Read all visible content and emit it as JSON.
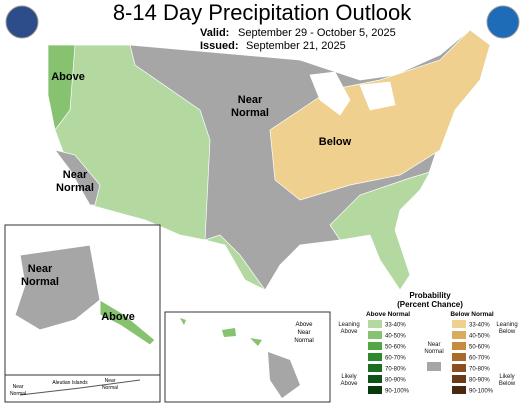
{
  "header": {
    "title": "8-14 Day Precipitation Outlook",
    "valid_label": "Valid:",
    "valid_dates": "September 29 - October 5, 2025",
    "issued_label": "Issued:",
    "issued_date": "September 21, 2025"
  },
  "map_labels": [
    [
      "Above"
    ],
    [
      "Near",
      "Normal"
    ],
    [
      "Below"
    ],
    [
      "Near",
      "Normal"
    ],
    [
      "Near",
      "Normal"
    ],
    [
      "Above"
    ],
    [
      "Aleutian Islands"
    ],
    [
      "Near",
      "Normal"
    ],
    [
      "Near",
      "Normal"
    ],
    [
      "Above",
      "Near",
      "Normal"
    ]
  ],
  "legend": {
    "title": "Probability",
    "subtitle": "(Percent Chance)",
    "above_heading": "Above Normal",
    "below_heading": "Below Normal",
    "near_normal": [
      "Near",
      "Normal"
    ],
    "near_color": "#a6a6a6",
    "above_ranges": [
      {
        "label": "33-40%",
        "color": "#b3d9a0"
      },
      {
        "label": "40-50%",
        "color": "#86c270"
      },
      {
        "label": "50-60%",
        "color": "#4fa845"
      },
      {
        "label": "60-70%",
        "color": "#2b8a2b"
      },
      {
        "label": "70-80%",
        "color": "#1b6e1e"
      },
      {
        "label": "80-90%",
        "color": "#0f5215"
      },
      {
        "label": "90-100%",
        "color": "#083a0c"
      }
    ],
    "below_ranges": [
      {
        "label": "33-40%",
        "color": "#f0d08f"
      },
      {
        "label": "40-50%",
        "color": "#dcaa5e"
      },
      {
        "label": "50-60%",
        "color": "#c88a3e"
      },
      {
        "label": "60-70%",
        "color": "#a96b2c"
      },
      {
        "label": "70-80%",
        "color": "#8a5020"
      },
      {
        "label": "80-90%",
        "color": "#6b3a17"
      },
      {
        "label": "90-100%",
        "color": "#4a2810"
      }
    ],
    "leaning_above": [
      "Leaning",
      "Above"
    ],
    "likely_above": [
      "Likely",
      "Above"
    ],
    "leaning_below": [
      "Leaning",
      "Below"
    ],
    "likely_below": [
      "Likely",
      "Below"
    ]
  }
}
